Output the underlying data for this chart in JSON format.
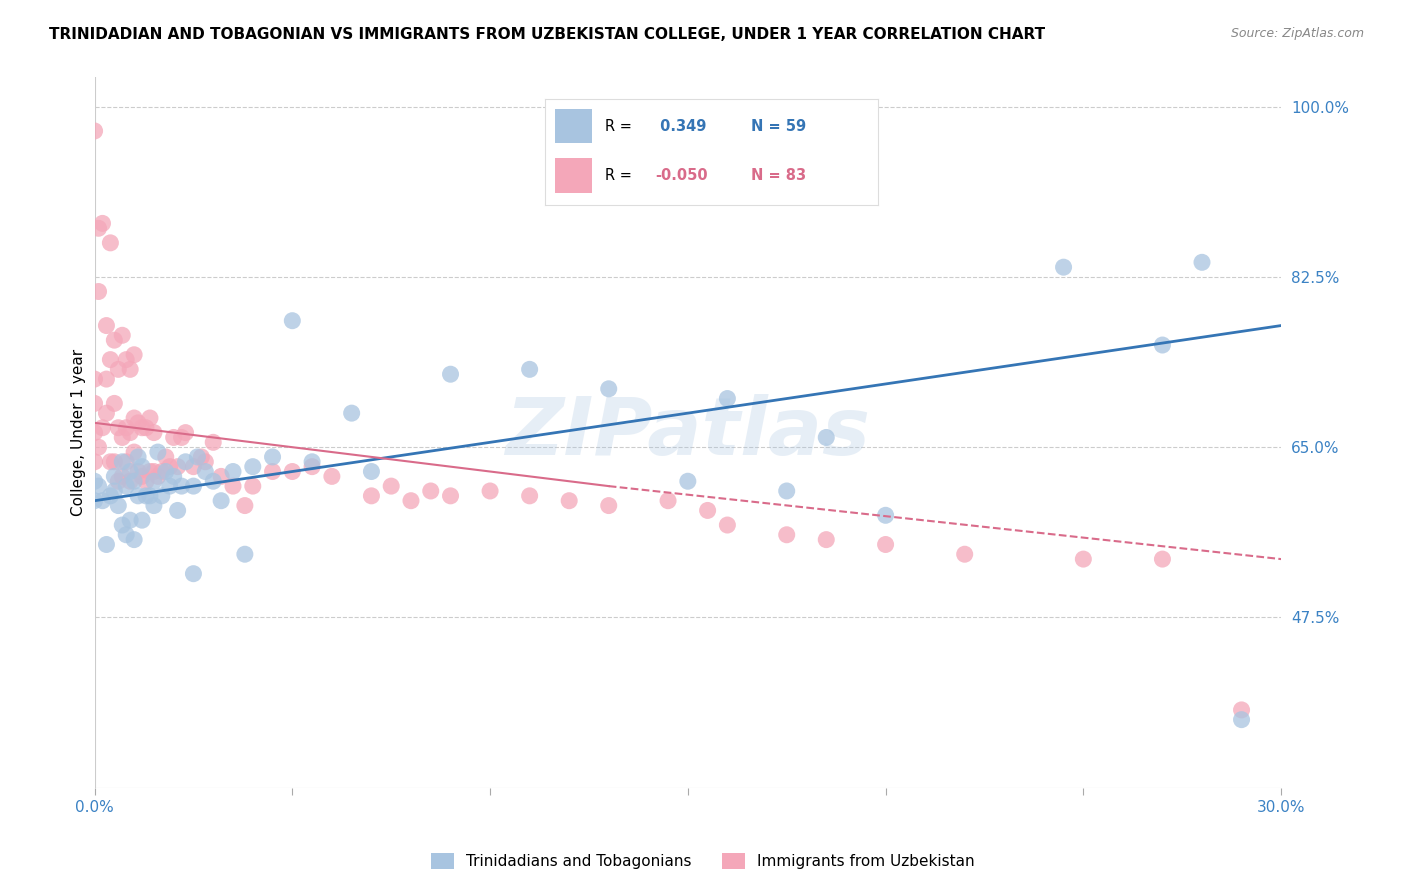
{
  "title": "TRINIDADIAN AND TOBAGONIAN VS IMMIGRANTS FROM UZBEKISTAN COLLEGE, UNDER 1 YEAR CORRELATION CHART",
  "source": "Source: ZipAtlas.com",
  "ylabel": "College, Under 1 year",
  "xlim": [
    0.0,
    0.3
  ],
  "ylim": [
    0.3,
    1.03
  ],
  "xticks": [
    0.0,
    0.05,
    0.1,
    0.15,
    0.2,
    0.25,
    0.3
  ],
  "xticklabels": [
    "0.0%",
    "",
    "",
    "",
    "",
    "",
    "30.0%"
  ],
  "yticks": [
    0.475,
    0.65,
    0.825,
    1.0
  ],
  "yticklabels": [
    "47.5%",
    "65.0%",
    "82.5%",
    "100.0%"
  ],
  "blue_R": 0.349,
  "blue_N": 59,
  "pink_R": -0.05,
  "pink_N": 83,
  "blue_color": "#a8c4e0",
  "pink_color": "#f4a7b9",
  "blue_line_color": "#3575b5",
  "pink_line_color": "#d96b8a",
  "legend_label_blue": "Trinidadians and Tobagonians",
  "legend_label_pink": "Immigrants from Uzbekistan",
  "watermark": "ZIPatlas",
  "blue_line_x0": 0.0,
  "blue_line_y0": 0.595,
  "blue_line_x1": 0.3,
  "blue_line_y1": 0.775,
  "pink_line_x0": 0.0,
  "pink_line_y0": 0.675,
  "pink_line_x1": 0.3,
  "pink_line_y1": 0.535,
  "blue_scatter_x": [
    0.0,
    0.0,
    0.001,
    0.002,
    0.003,
    0.004,
    0.005,
    0.005,
    0.006,
    0.007,
    0.007,
    0.008,
    0.008,
    0.009,
    0.009,
    0.01,
    0.01,
    0.011,
    0.011,
    0.012,
    0.012,
    0.013,
    0.014,
    0.015,
    0.015,
    0.016,
    0.017,
    0.018,
    0.019,
    0.02,
    0.021,
    0.022,
    0.023,
    0.025,
    0.025,
    0.026,
    0.028,
    0.03,
    0.032,
    0.035,
    0.038,
    0.04,
    0.045,
    0.05,
    0.055,
    0.065,
    0.07,
    0.09,
    0.11,
    0.13,
    0.15,
    0.16,
    0.175,
    0.185,
    0.2,
    0.245,
    0.27,
    0.28,
    0.29
  ],
  "blue_scatter_y": [
    0.595,
    0.615,
    0.61,
    0.595,
    0.55,
    0.6,
    0.605,
    0.62,
    0.59,
    0.57,
    0.635,
    0.56,
    0.61,
    0.575,
    0.625,
    0.555,
    0.615,
    0.6,
    0.64,
    0.575,
    0.63,
    0.6,
    0.6,
    0.59,
    0.615,
    0.645,
    0.6,
    0.625,
    0.61,
    0.62,
    0.585,
    0.61,
    0.635,
    0.52,
    0.61,
    0.64,
    0.625,
    0.615,
    0.595,
    0.625,
    0.54,
    0.63,
    0.64,
    0.78,
    0.635,
    0.685,
    0.625,
    0.725,
    0.73,
    0.71,
    0.615,
    0.7,
    0.605,
    0.66,
    0.58,
    0.835,
    0.755,
    0.84,
    0.37
  ],
  "pink_scatter_x": [
    0.0,
    0.0,
    0.0,
    0.0,
    0.0,
    0.001,
    0.001,
    0.001,
    0.002,
    0.002,
    0.003,
    0.003,
    0.003,
    0.004,
    0.004,
    0.004,
    0.005,
    0.005,
    0.005,
    0.006,
    0.006,
    0.006,
    0.007,
    0.007,
    0.007,
    0.008,
    0.008,
    0.008,
    0.009,
    0.009,
    0.009,
    0.01,
    0.01,
    0.01,
    0.011,
    0.011,
    0.012,
    0.012,
    0.013,
    0.013,
    0.014,
    0.014,
    0.015,
    0.015,
    0.016,
    0.017,
    0.018,
    0.019,
    0.02,
    0.021,
    0.022,
    0.023,
    0.025,
    0.027,
    0.028,
    0.03,
    0.032,
    0.035,
    0.038,
    0.04,
    0.045,
    0.05,
    0.055,
    0.06,
    0.07,
    0.075,
    0.08,
    0.085,
    0.09,
    0.1,
    0.11,
    0.12,
    0.13,
    0.145,
    0.155,
    0.16,
    0.175,
    0.185,
    0.2,
    0.22,
    0.25,
    0.27,
    0.29
  ],
  "pink_scatter_y": [
    0.635,
    0.665,
    0.695,
    0.72,
    0.975,
    0.875,
    0.81,
    0.65,
    0.67,
    0.88,
    0.72,
    0.685,
    0.775,
    0.635,
    0.74,
    0.86,
    0.635,
    0.695,
    0.76,
    0.615,
    0.67,
    0.73,
    0.62,
    0.66,
    0.765,
    0.635,
    0.67,
    0.74,
    0.615,
    0.665,
    0.73,
    0.645,
    0.68,
    0.745,
    0.625,
    0.675,
    0.62,
    0.67,
    0.615,
    0.67,
    0.625,
    0.68,
    0.625,
    0.665,
    0.62,
    0.625,
    0.64,
    0.63,
    0.66,
    0.63,
    0.66,
    0.665,
    0.63,
    0.64,
    0.635,
    0.655,
    0.62,
    0.61,
    0.59,
    0.61,
    0.625,
    0.625,
    0.63,
    0.62,
    0.6,
    0.61,
    0.595,
    0.605,
    0.6,
    0.605,
    0.6,
    0.595,
    0.59,
    0.595,
    0.585,
    0.57,
    0.56,
    0.555,
    0.55,
    0.54,
    0.535,
    0.535,
    0.38
  ]
}
